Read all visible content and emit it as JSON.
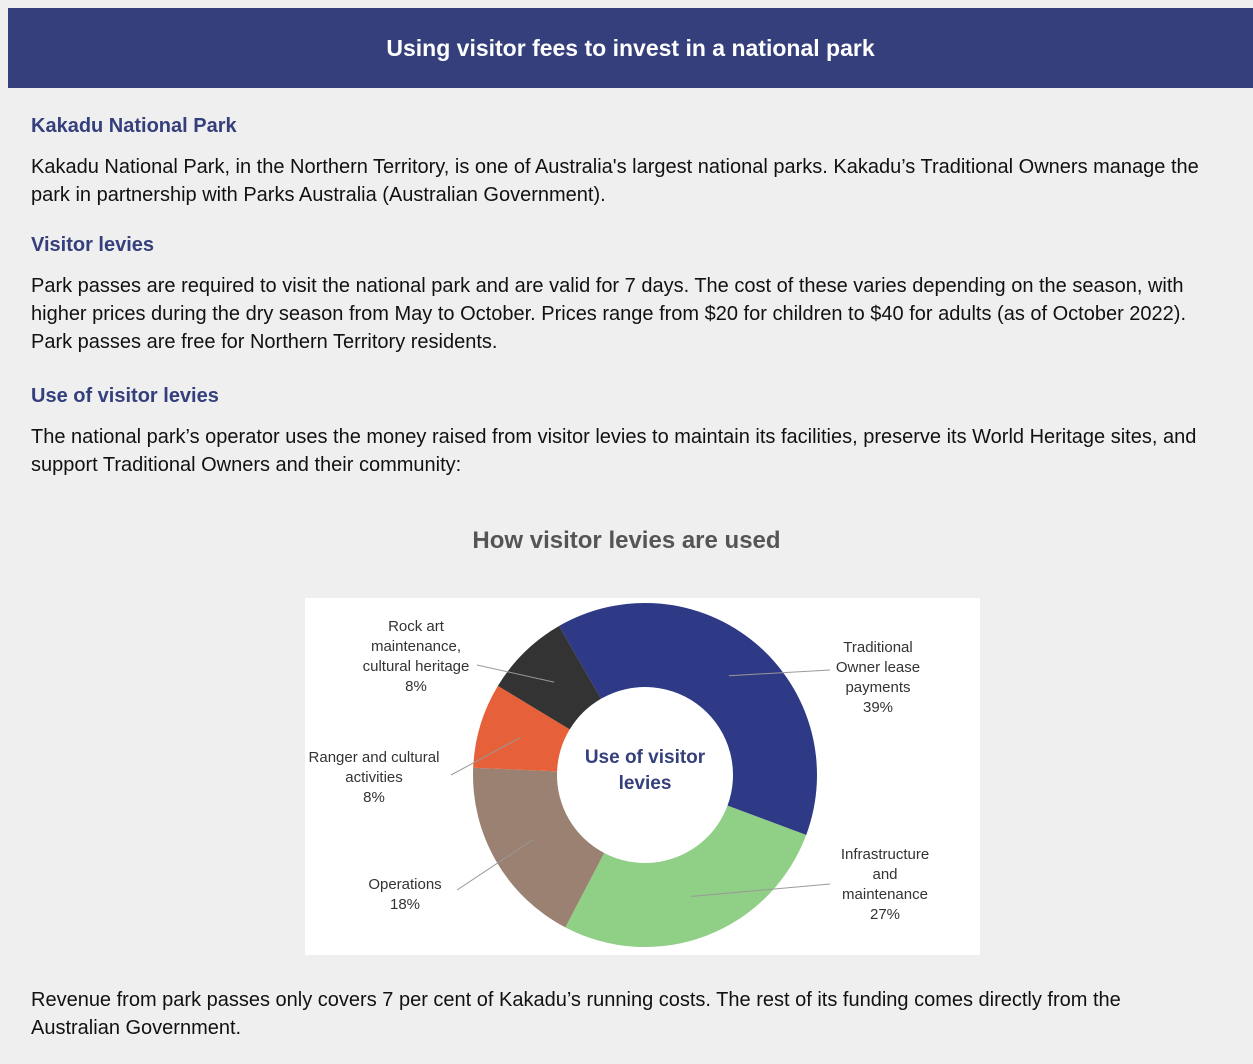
{
  "header": {
    "title": "Using visitor fees to invest in a national park"
  },
  "sections": [
    {
      "heading": "Kakadu National Park",
      "text": "Kakadu National Park, in the Northern Territory, is one of Australia's largest national parks. Kakadu’s Traditional Owners manage the park in partnership with Parks Australia (Australian Government)."
    },
    {
      "heading": "Visitor levies",
      "text": "Park passes are required to visit the national park and are valid for 7 days. The cost of these varies depending on the season, with higher prices during the dry season from May to October. Prices range from $20 for children to $40 for adults (as of October 2022). Park passes are free for Northern Territory residents."
    },
    {
      "heading": "Use of visitor levies",
      "text": "The national park’s operator uses the money raised from visitor levies to maintain its facilities, preserve its World Heritage sites, and support Traditional Owners and their community:"
    }
  ],
  "chart_data": {
    "type": "donut",
    "title": "How visitor levies are used",
    "center_label": "Use of visitor levies",
    "categories": [
      "Traditional Owner lease payments",
      "Infrastructure and maintenance",
      "Operations",
      "Ranger and cultural activities",
      "Rock art maintenance, cultural heritage"
    ],
    "values": [
      39,
      27,
      18,
      8,
      8
    ],
    "value_labels": [
      "39%",
      "27%",
      "18%",
      "8%",
      "8%"
    ],
    "colors": [
      "#2e3a85",
      "#90cf86",
      "#9a8171",
      "#e6613a",
      "#333333"
    ]
  },
  "footer": {
    "text": "Revenue from park passes only covers 7 per cent of Kakadu’s running costs. The rest of its funding comes directly from the Australian Government."
  }
}
